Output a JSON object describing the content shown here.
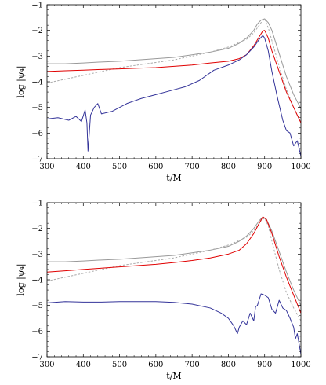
{
  "chart_data": [
    {
      "type": "line",
      "xlabel": "t/M",
      "ylabel": "log |ψ₄|",
      "xlim": [
        300,
        1000
      ],
      "ylim": [
        -7,
        -1
      ],
      "xticks": [
        300,
        400,
        500,
        600,
        700,
        800,
        900,
        1000
      ],
      "yticks": [
        -1,
        -2,
        -3,
        -4,
        -5,
        -6,
        -7
      ],
      "grid": false,
      "legend": "none",
      "series": [
        {
          "color": "#999999",
          "style": "solid",
          "x": [
            300,
            350,
            400,
            450,
            500,
            550,
            600,
            650,
            700,
            750,
            800,
            830,
            850,
            870,
            880,
            890,
            900,
            910,
            920,
            940,
            960,
            980,
            1000
          ],
          "y": [
            -3.3,
            -3.3,
            -3.27,
            -3.23,
            -3.2,
            -3.15,
            -3.1,
            -3.05,
            -2.95,
            -2.85,
            -2.7,
            -2.5,
            -2.3,
            -2.0,
            -1.75,
            -1.6,
            -1.55,
            -1.7,
            -2.0,
            -2.9,
            -3.8,
            -4.5,
            -5.05
          ]
        },
        {
          "color": "#aaaaaa",
          "style": "dashed",
          "x": [
            300,
            350,
            400,
            450,
            500,
            550,
            600,
            650,
            700,
            750,
            800,
            850,
            870,
            890,
            900,
            910,
            920,
            940,
            960,
            980,
            1000
          ],
          "y": [
            -4.05,
            -3.9,
            -3.75,
            -3.6,
            -3.45,
            -3.35,
            -3.25,
            -3.15,
            -3.0,
            -2.85,
            -2.65,
            -2.35,
            -2.1,
            -1.7,
            -1.55,
            -1.9,
            -2.4,
            -3.4,
            -4.3,
            -5.0,
            -5.6
          ]
        },
        {
          "color": "#e00000",
          "style": "solid",
          "x": [
            300,
            350,
            400,
            450,
            500,
            550,
            600,
            650,
            700,
            750,
            800,
            830,
            850,
            870,
            885,
            895,
            900,
            910,
            920,
            940,
            960,
            980,
            1000
          ],
          "y": [
            -3.6,
            -3.57,
            -3.55,
            -3.52,
            -3.5,
            -3.47,
            -3.45,
            -3.4,
            -3.35,
            -3.27,
            -3.2,
            -3.1,
            -2.95,
            -2.6,
            -2.25,
            -2.02,
            -2.0,
            -2.3,
            -2.8,
            -3.6,
            -4.4,
            -5.0,
            -5.6
          ]
        },
        {
          "color": "#333399",
          "style": "solid",
          "x": [
            300,
            330,
            360,
            380,
            395,
            405,
            410,
            413,
            420,
            430,
            440,
            450,
            480,
            520,
            560,
            600,
            640,
            680,
            720,
            760,
            800,
            830,
            850,
            870,
            885,
            895,
            900,
            910,
            920,
            935,
            950,
            960,
            970,
            980,
            990,
            1000
          ],
          "y": [
            -5.45,
            -5.4,
            -5.5,
            -5.35,
            -5.55,
            -5.1,
            -5.6,
            -6.7,
            -5.3,
            -5.0,
            -4.85,
            -5.25,
            -5.15,
            -4.85,
            -4.65,
            -4.5,
            -4.35,
            -4.2,
            -3.95,
            -3.55,
            -3.35,
            -3.15,
            -2.95,
            -2.65,
            -2.35,
            -2.2,
            -2.3,
            -2.8,
            -3.6,
            -4.6,
            -5.5,
            -5.9,
            -6.0,
            -6.5,
            -6.3,
            -6.9
          ]
        }
      ]
    },
    {
      "type": "line",
      "xlabel": "t/M",
      "ylabel": "log |ψ₄|",
      "xlim": [
        300,
        1000
      ],
      "ylim": [
        -7,
        -1
      ],
      "xticks": [
        300,
        400,
        500,
        600,
        700,
        800,
        900,
        1000
      ],
      "yticks": [
        -1,
        -2,
        -3,
        -4,
        -5,
        -6,
        -7
      ],
      "grid": false,
      "legend": "none",
      "series": [
        {
          "color": "#999999",
          "style": "solid",
          "x": [
            300,
            350,
            400,
            450,
            500,
            550,
            600,
            650,
            700,
            750,
            800,
            830,
            850,
            870,
            885,
            895,
            905,
            920,
            940,
            960,
            980,
            1000
          ],
          "y": [
            -3.3,
            -3.3,
            -3.27,
            -3.23,
            -3.2,
            -3.15,
            -3.1,
            -3.05,
            -2.95,
            -2.85,
            -2.7,
            -2.5,
            -2.3,
            -2.0,
            -1.7,
            -1.55,
            -1.65,
            -2.1,
            -2.9,
            -3.7,
            -4.4,
            -5.0
          ]
        },
        {
          "color": "#aaaaaa",
          "style": "dashed",
          "x": [
            300,
            350,
            400,
            450,
            500,
            550,
            600,
            650,
            700,
            750,
            800,
            850,
            870,
            890,
            900,
            910,
            920,
            940,
            960,
            980,
            1000
          ],
          "y": [
            -4.05,
            -3.9,
            -3.75,
            -3.6,
            -3.45,
            -3.35,
            -3.25,
            -3.15,
            -3.0,
            -2.85,
            -2.65,
            -2.35,
            -2.1,
            -1.7,
            -1.6,
            -1.9,
            -2.5,
            -3.6,
            -4.5,
            -5.1,
            -5.6
          ]
        },
        {
          "color": "#e00000",
          "style": "solid",
          "x": [
            300,
            350,
            400,
            450,
            500,
            550,
            600,
            650,
            700,
            750,
            800,
            830,
            850,
            870,
            885,
            895,
            905,
            920,
            940,
            960,
            980,
            1000
          ],
          "y": [
            -3.7,
            -3.65,
            -3.6,
            -3.55,
            -3.5,
            -3.45,
            -3.4,
            -3.33,
            -3.25,
            -3.15,
            -3.0,
            -2.85,
            -2.6,
            -2.2,
            -1.8,
            -1.55,
            -1.65,
            -2.2,
            -3.1,
            -3.9,
            -4.6,
            -5.3
          ]
        },
        {
          "color": "#333399",
          "style": "solid",
          "x": [
            300,
            350,
            400,
            450,
            500,
            550,
            600,
            650,
            700,
            750,
            780,
            800,
            815,
            825,
            830,
            840,
            850,
            860,
            870,
            875,
            880,
            890,
            900,
            910,
            920,
            930,
            940,
            950,
            960,
            970,
            980,
            985,
            990,
            995,
            1000
          ],
          "y": [
            -4.9,
            -4.85,
            -4.87,
            -4.87,
            -4.85,
            -4.85,
            -4.85,
            -4.88,
            -4.95,
            -5.1,
            -5.3,
            -5.5,
            -5.8,
            -6.1,
            -5.85,
            -5.6,
            -5.75,
            -5.3,
            -5.6,
            -5.05,
            -5.0,
            -4.55,
            -4.6,
            -4.7,
            -5.15,
            -5.3,
            -4.8,
            -5.1,
            -5.2,
            -5.5,
            -5.85,
            -6.3,
            -6.1,
            -6.5,
            -6.9
          ]
        }
      ]
    }
  ]
}
